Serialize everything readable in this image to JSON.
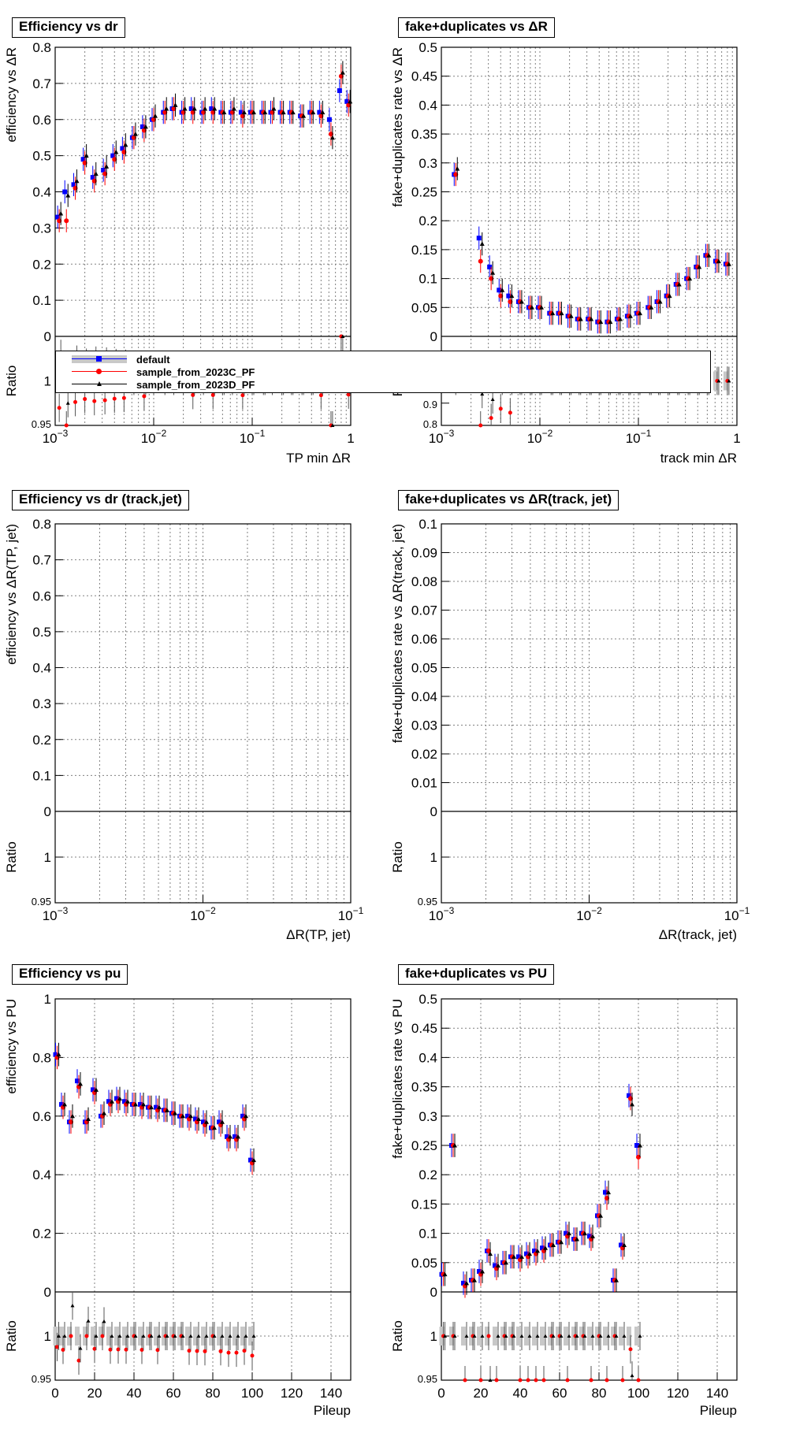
{
  "legend": [
    {
      "label": "default",
      "color": "#0000ff",
      "marker": "square"
    },
    {
      "label": "sample_from_2023C_PF",
      "color": "#ff0000",
      "marker": "circle"
    },
    {
      "label": "sample_from_2023D_PF",
      "color": "#000000",
      "marker": "triangle"
    }
  ],
  "chart_data": [
    {
      "type": "scatter",
      "title": "Efficiency vs dr",
      "ylabel": "efficiency vs  ΔR",
      "xlabel": "TP min  ΔR",
      "ratio_ylabel": "Ratio",
      "xscale": "log",
      "xlim": [
        0.001,
        1
      ],
      "ylim": [
        0,
        0.8
      ],
      "yticks": [
        "0",
        "0.1",
        "0.2",
        "0.3",
        "0.4",
        "0.5",
        "0.6",
        "0.7",
        "0.8"
      ],
      "xticks": [
        "10^-3",
        "10^-2",
        "10^-1",
        "1"
      ],
      "ratio_ylim": [
        0.95,
        1.05
      ],
      "ratio_yticks": [
        "0.95",
        "1"
      ],
      "grid": true,
      "series": [
        {
          "name": "default",
          "x": [
            0.0011,
            0.0013,
            0.0016,
            0.002,
            0.0025,
            0.0032,
            0.004,
            0.005,
            0.0063,
            0.008,
            0.01,
            0.013,
            0.016,
            0.02,
            0.025,
            0.032,
            0.04,
            0.05,
            0.063,
            0.08,
            0.1,
            0.13,
            0.16,
            0.2,
            0.25,
            0.32,
            0.4,
            0.5,
            0.63,
            0.8,
            0.95
          ],
          "y": [
            0.33,
            0.4,
            0.42,
            0.49,
            0.44,
            0.46,
            0.5,
            0.52,
            0.55,
            0.58,
            0.6,
            0.62,
            0.63,
            0.62,
            0.63,
            0.62,
            0.63,
            0.62,
            0.62,
            0.62,
            0.62,
            0.62,
            0.62,
            0.62,
            0.62,
            0.61,
            0.62,
            0.62,
            0.6,
            0.68,
            0.65
          ]
        },
        {
          "name": "sample_from_2023C_PF",
          "x": [
            0.0011,
            0.0013,
            0.0016,
            0.002,
            0.0025,
            0.0032,
            0.004,
            0.005,
            0.0063,
            0.008,
            0.01,
            0.013,
            0.016,
            0.02,
            0.025,
            0.032,
            0.04,
            0.05,
            0.063,
            0.08,
            0.1,
            0.13,
            0.16,
            0.2,
            0.25,
            0.32,
            0.4,
            0.5,
            0.63,
            0.8,
            0.95
          ],
          "y": [
            0.32,
            0.32,
            0.41,
            0.48,
            0.43,
            0.45,
            0.49,
            0.51,
            0.55,
            0.57,
            0.6,
            0.62,
            0.63,
            0.62,
            0.62,
            0.62,
            0.62,
            0.62,
            0.62,
            0.61,
            0.62,
            0.62,
            0.62,
            0.62,
            0.62,
            0.61,
            0.62,
            0.61,
            0.56,
            0.72,
            0.64
          ]
        },
        {
          "name": "sample_from_2023D_PF",
          "x": [
            0.0011,
            0.0013,
            0.0016,
            0.002,
            0.0025,
            0.0032,
            0.004,
            0.005,
            0.0063,
            0.008,
            0.01,
            0.013,
            0.016,
            0.02,
            0.025,
            0.032,
            0.04,
            0.05,
            0.063,
            0.08,
            0.1,
            0.13,
            0.16,
            0.2,
            0.25,
            0.32,
            0.4,
            0.5,
            0.63,
            0.8,
            0.95
          ],
          "y": [
            0.34,
            0.39,
            0.43,
            0.5,
            0.45,
            0.47,
            0.51,
            0.53,
            0.56,
            0.58,
            0.61,
            0.63,
            0.64,
            0.63,
            0.63,
            0.63,
            0.63,
            0.62,
            0.63,
            0.62,
            0.62,
            0.62,
            0.63,
            0.62,
            0.62,
            0.61,
            0.62,
            0.62,
            0.55,
            0.73,
            0.65
          ]
        }
      ]
    },
    {
      "type": "scatter",
      "title": "fake+duplicates vs  ΔR",
      "ylabel": "fake+duplicates rate vs  ΔR",
      "xlabel": "track min  ΔR",
      "ratio_ylabel": "Ratio",
      "xscale": "log",
      "xlim": [
        0.001,
        1
      ],
      "ylim": [
        0,
        0.5
      ],
      "yticks": [
        "0",
        "0.05",
        "0.1",
        "0.15",
        "0.2",
        "0.25",
        "0.3",
        "0.35",
        "0.4",
        "0.45",
        "0.5"
      ],
      "xticks": [
        "10^-3",
        "10^-2",
        "10^-1",
        "1"
      ],
      "ratio_ylim": [
        0.8,
        1.2
      ],
      "ratio_yticks": [
        "0.8",
        "0.9"
      ],
      "grid": true,
      "series": [
        {
          "name": "default",
          "x": [
            0.0014,
            0.0025,
            0.0032,
            0.004,
            0.005,
            0.0063,
            0.008,
            0.01,
            0.013,
            0.016,
            0.02,
            0.025,
            0.032,
            0.04,
            0.05,
            0.063,
            0.08,
            0.1,
            0.13,
            0.16,
            0.2,
            0.25,
            0.32,
            0.4,
            0.5,
            0.63,
            0.8
          ],
          "y": [
            0.28,
            0.17,
            0.12,
            0.08,
            0.07,
            0.06,
            0.05,
            0.05,
            0.04,
            0.04,
            0.035,
            0.03,
            0.03,
            0.025,
            0.025,
            0.03,
            0.035,
            0.04,
            0.05,
            0.06,
            0.07,
            0.09,
            0.1,
            0.12,
            0.14,
            0.13,
            0.125
          ]
        },
        {
          "name": "sample_from_2023C_PF",
          "x": [
            0.0014,
            0.0025,
            0.0032,
            0.004,
            0.005,
            0.0063,
            0.008,
            0.01,
            0.013,
            0.016,
            0.02,
            0.025,
            0.032,
            0.04,
            0.05,
            0.063,
            0.08,
            0.1,
            0.13,
            0.16,
            0.2,
            0.25,
            0.32,
            0.4,
            0.5,
            0.63,
            0.8
          ],
          "y": [
            0.28,
            0.13,
            0.1,
            0.07,
            0.06,
            0.06,
            0.05,
            0.05,
            0.04,
            0.04,
            0.035,
            0.03,
            0.03,
            0.025,
            0.025,
            0.03,
            0.035,
            0.04,
            0.05,
            0.06,
            0.07,
            0.09,
            0.1,
            0.12,
            0.14,
            0.13,
            0.125
          ]
        },
        {
          "name": "sample_from_2023D_PF",
          "x": [
            0.0014,
            0.0025,
            0.0032,
            0.004,
            0.005,
            0.0063,
            0.008,
            0.01,
            0.013,
            0.016,
            0.02,
            0.025,
            0.032,
            0.04,
            0.05,
            0.063,
            0.08,
            0.1,
            0.13,
            0.16,
            0.2,
            0.25,
            0.32,
            0.4,
            0.5,
            0.63,
            0.8
          ],
          "y": [
            0.29,
            0.16,
            0.11,
            0.08,
            0.07,
            0.06,
            0.05,
            0.05,
            0.04,
            0.04,
            0.035,
            0.03,
            0.03,
            0.025,
            0.025,
            0.03,
            0.035,
            0.04,
            0.05,
            0.06,
            0.07,
            0.09,
            0.1,
            0.12,
            0.14,
            0.13,
            0.125
          ]
        }
      ]
    },
    {
      "type": "scatter",
      "title": "Efficiency vs dr (track,jet)",
      "ylabel": "efficiency vs  ΔR(TP, jet)",
      "xlabel": "ΔR(TP, jet)",
      "ratio_ylabel": "Ratio",
      "xscale": "log",
      "xlim": [
        0.001,
        0.1
      ],
      "ylim": [
        0,
        0.8
      ],
      "yticks": [
        "0",
        "0.1",
        "0.2",
        "0.3",
        "0.4",
        "0.5",
        "0.6",
        "0.7",
        "0.8"
      ],
      "xticks": [
        "10^-3",
        "10^-2",
        "10^-1"
      ],
      "ratio_ylim": [
        0.95,
        1.05
      ],
      "ratio_yticks": [
        "0.95",
        "1"
      ],
      "grid": true,
      "series": []
    },
    {
      "type": "scatter",
      "title": "fake+duplicates vs  ΔR(track, jet)",
      "ylabel": "fake+duplicates rate vs  ΔR(track, jet)",
      "xlabel": "ΔR(track, jet)",
      "ratio_ylabel": "Ratio",
      "xscale": "log",
      "xlim": [
        0.001,
        0.1
      ],
      "ylim": [
        0,
        0.1
      ],
      "yticks": [
        "0",
        "0.01",
        "0.02",
        "0.03",
        "0.04",
        "0.05",
        "0.06",
        "0.07",
        "0.08",
        "0.09",
        "0.1"
      ],
      "xticks": [
        "10^-3",
        "10^-2",
        "10^-1"
      ],
      "ratio_ylim": [
        0.95,
        1.05
      ],
      "ratio_yticks": [
        "0.95",
        "1"
      ],
      "grid": true,
      "series": []
    },
    {
      "type": "scatter",
      "title": "Efficiency vs pu",
      "ylabel": "efficiency vs PU",
      "xlabel": "Pileup",
      "ratio_ylabel": "Ratio",
      "xscale": "linear",
      "xlim": [
        0,
        150
      ],
      "ylim": [
        0,
        1
      ],
      "yticks": [
        "0",
        "0.2",
        "0.4",
        "0.6",
        "0.8",
        "1"
      ],
      "xticks": [
        "0",
        "20",
        "40",
        "60",
        "80",
        "100",
        "120",
        "140"
      ],
      "ratio_ylim": [
        0.95,
        1.05
      ],
      "ratio_yticks": [
        "0.95",
        "1"
      ],
      "grid": true,
      "series": [
        {
          "name": "default",
          "x": [
            1,
            4,
            8,
            12,
            16,
            20,
            24,
            28,
            32,
            36,
            40,
            44,
            48,
            52,
            56,
            60,
            64,
            68,
            72,
            76,
            80,
            84,
            88,
            92,
            96,
            100
          ],
          "y": [
            0.81,
            0.64,
            0.58,
            0.72,
            0.58,
            0.69,
            0.6,
            0.65,
            0.66,
            0.65,
            0.64,
            0.64,
            0.63,
            0.63,
            0.62,
            0.61,
            0.6,
            0.6,
            0.59,
            0.58,
            0.56,
            0.58,
            0.53,
            0.53,
            0.6,
            0.45
          ]
        },
        {
          "name": "sample_from_2023C_PF",
          "x": [
            1,
            4,
            8,
            12,
            16,
            20,
            24,
            28,
            32,
            36,
            40,
            44,
            48,
            52,
            56,
            60,
            64,
            68,
            72,
            76,
            80,
            84,
            88,
            92,
            96,
            100
          ],
          "y": [
            0.8,
            0.63,
            0.58,
            0.7,
            0.58,
            0.68,
            0.6,
            0.64,
            0.65,
            0.64,
            0.64,
            0.63,
            0.63,
            0.62,
            0.62,
            0.61,
            0.6,
            0.59,
            0.58,
            0.57,
            0.56,
            0.57,
            0.52,
            0.52,
            0.59,
            0.44
          ]
        },
        {
          "name": "sample_from_2023D_PF",
          "x": [
            1,
            4,
            8,
            12,
            16,
            20,
            24,
            28,
            32,
            36,
            40,
            44,
            48,
            52,
            56,
            60,
            64,
            68,
            72,
            76,
            80,
            84,
            88,
            92,
            96,
            100
          ],
          "y": [
            0.81,
            0.64,
            0.6,
            0.71,
            0.59,
            0.69,
            0.61,
            0.65,
            0.66,
            0.65,
            0.64,
            0.64,
            0.63,
            0.63,
            0.62,
            0.61,
            0.6,
            0.6,
            0.59,
            0.58,
            0.56,
            0.58,
            0.53,
            0.53,
            0.6,
            0.45
          ]
        }
      ]
    },
    {
      "type": "scatter",
      "title": "fake+duplicates vs PU",
      "ylabel": "fake+duplicates rate vs PU",
      "xlabel": "Pileup",
      "ratio_ylabel": "Ratio",
      "xscale": "linear",
      "xlim": [
        0,
        150
      ],
      "ylim": [
        0,
        0.5
      ],
      "yticks": [
        "0",
        "0.05",
        "0.1",
        "0.15",
        "0.2",
        "0.25",
        "0.3",
        "0.35",
        "0.4",
        "0.45",
        "0.5"
      ],
      "xticks": [
        "0",
        "20",
        "40",
        "60",
        "80",
        "100",
        "120",
        "140"
      ],
      "ratio_ylim": [
        0.95,
        1.05
      ],
      "ratio_yticks": [
        "0.95",
        "1"
      ],
      "grid": true,
      "series": [
        {
          "name": "default",
          "x": [
            1,
            6,
            12,
            16,
            20,
            24,
            28,
            32,
            36,
            40,
            44,
            48,
            52,
            56,
            60,
            64,
            68,
            72,
            76,
            80,
            84,
            88,
            92,
            96,
            100
          ],
          "y": [
            0.03,
            0.25,
            0.015,
            0.02,
            0.035,
            0.07,
            0.045,
            0.05,
            0.06,
            0.06,
            0.065,
            0.07,
            0.075,
            0.08,
            0.085,
            0.1,
            0.09,
            0.1,
            0.095,
            0.13,
            0.17,
            0.02,
            0.08,
            0.335,
            0.25
          ]
        },
        {
          "name": "sample_from_2023C_PF",
          "x": [
            1,
            6,
            12,
            16,
            20,
            24,
            28,
            32,
            36,
            40,
            44,
            48,
            52,
            56,
            60,
            64,
            68,
            72,
            76,
            80,
            84,
            88,
            92,
            96,
            100
          ],
          "y": [
            0.03,
            0.25,
            0.01,
            0.02,
            0.03,
            0.07,
            0.04,
            0.05,
            0.06,
            0.055,
            0.06,
            0.065,
            0.07,
            0.08,
            0.085,
            0.095,
            0.09,
            0.1,
            0.09,
            0.13,
            0.16,
            0.02,
            0.075,
            0.33,
            0.23
          ]
        },
        {
          "name": "sample_from_2023D_PF",
          "x": [
            1,
            6,
            12,
            16,
            20,
            24,
            28,
            32,
            36,
            40,
            44,
            48,
            52,
            56,
            60,
            64,
            68,
            72,
            76,
            80,
            84,
            88,
            92,
            96,
            100
          ],
          "y": [
            0.03,
            0.25,
            0.015,
            0.02,
            0.035,
            0.065,
            0.045,
            0.05,
            0.06,
            0.06,
            0.065,
            0.07,
            0.075,
            0.08,
            0.085,
            0.1,
            0.09,
            0.1,
            0.095,
            0.13,
            0.17,
            0.02,
            0.08,
            0.32,
            0.25
          ]
        }
      ]
    }
  ]
}
